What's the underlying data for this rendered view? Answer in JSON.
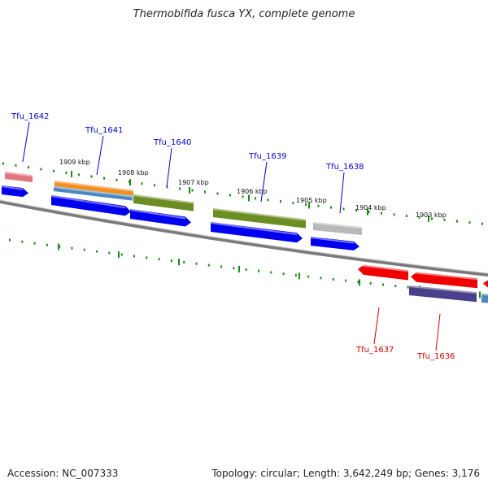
{
  "title": "Thermobifida fusca YX, complete genome",
  "footer": {
    "accession": "Accession: NC_007333",
    "summary": "Topology: circular; Length: 3,642,249 bp; Genes: 3,176"
  },
  "colors": {
    "backbone": "#7a7a7a",
    "tick": "#1a8a1a",
    "blue_cds": "#0000ee",
    "green_feature": "#6b8e23",
    "red_cds": "#ee0000",
    "gray_feature": "#b8b8b8",
    "orange_feature": "#f09020",
    "steelblue_feature": "#4a86c0",
    "purple_feature": "#4a3f8a",
    "pink_feature": "#e07880",
    "forward_label": "#0000cc",
    "reverse_label": "#cc0000"
  },
  "kbp_labels": [
    "1909 kbp",
    "1908 kbp",
    "1907 kbp",
    "1906 kbp",
    "1905 kbp",
    "1904 kbp",
    "1903 kbp"
  ],
  "gene_labels_forward": [
    "Tfu_1642",
    "Tfu_1641",
    "Tfu_1640",
    "Tfu_1639",
    "Tfu_1638"
  ],
  "gene_labels_reverse": [
    "Tfu_1637",
    "Tfu_1636"
  ]
}
